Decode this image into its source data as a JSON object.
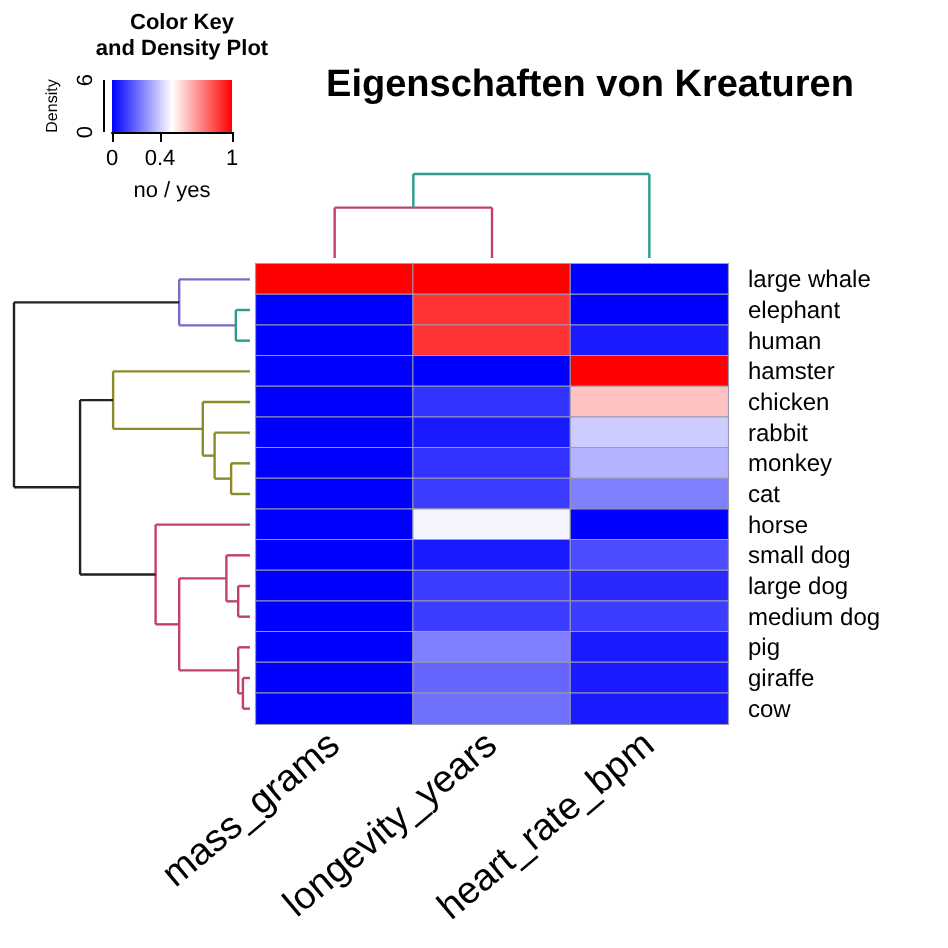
{
  "chart_data": {
    "type": "heatmap",
    "title": "Eigenschaften von Kreaturen",
    "legend_title": "Color Key\nand Density Plot",
    "clabel": "no / yes",
    "categories": [
      "mass_grams",
      "longevity_years",
      "heart_rate_bpm"
    ],
    "y_categories": [
      "large whale",
      "elephant",
      "human",
      "hamster",
      "chicken",
      "rabbit",
      "monkey",
      "cat",
      "horse",
      "small dog",
      "large dog",
      "medium dog",
      "pig",
      "giraffe",
      "cow"
    ],
    "cells": [
      [
        1,
        1,
        0
      ],
      [
        0,
        0.9,
        0
      ],
      [
        0,
        0.9,
        0.05
      ],
      [
        0,
        0,
        1
      ],
      [
        0,
        0.1,
        0.62
      ],
      [
        0,
        0.05,
        0.4
      ],
      [
        0,
        0.1,
        0.35
      ],
      [
        0,
        0.12,
        0.25
      ],
      [
        0,
        0.48,
        0
      ],
      [
        0,
        0.05,
        0.15
      ],
      [
        0,
        0.12,
        0.08
      ],
      [
        0,
        0.12,
        0.12
      ],
      [
        0,
        0.25,
        0.05
      ],
      [
        0,
        0.2,
        0.05
      ],
      [
        0,
        0.22,
        0.05
      ]
    ],
    "clim": [
      0,
      1
    ],
    "cticks": [
      0,
      0.4,
      1
    ],
    "annotations": [
      "Density",
      "0",
      "6"
    ]
  }
}
